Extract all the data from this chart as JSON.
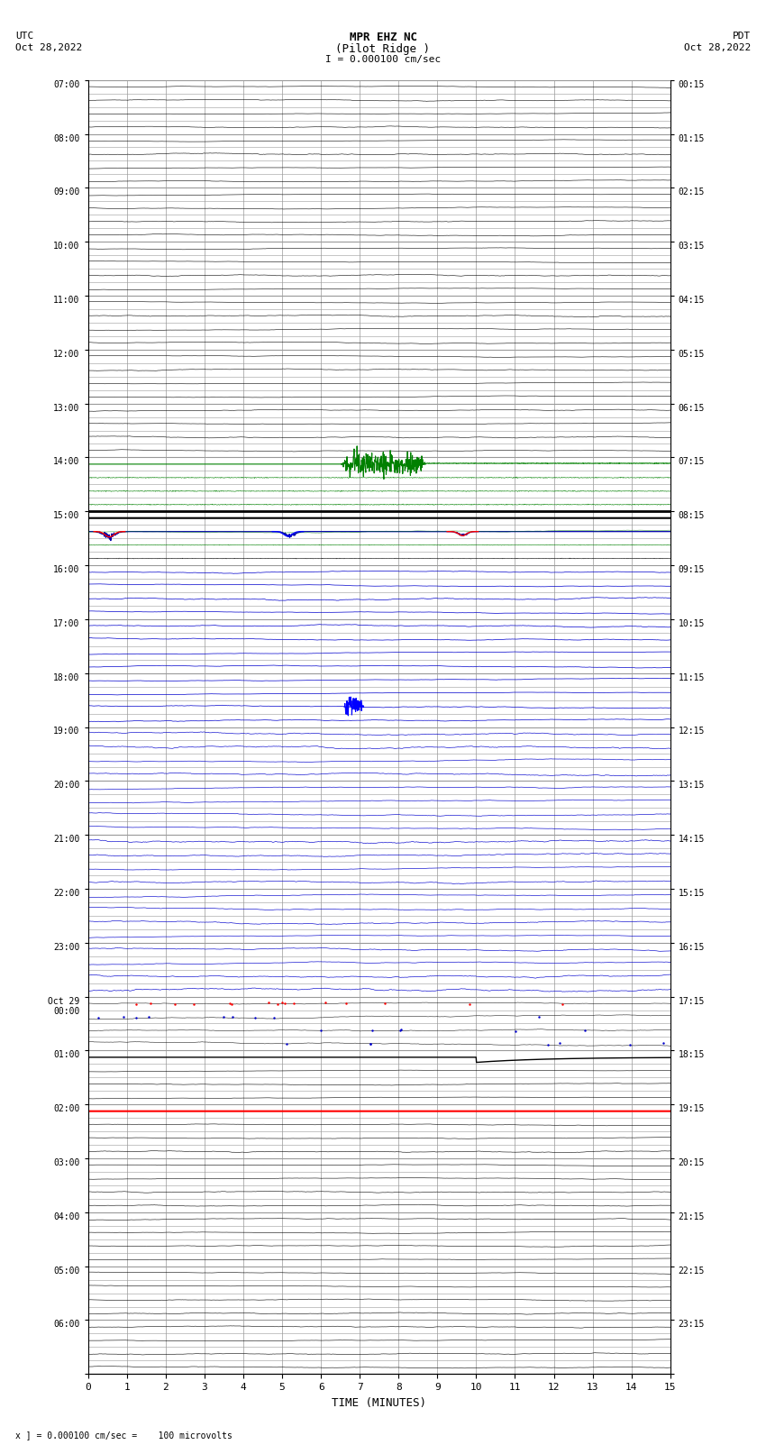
{
  "title_center_line1": "MPR EHZ NC",
  "title_center_line2": "(Pilot Ridge )",
  "title_left_line1": "UTC",
  "title_left_line2": "Oct 28,2022",
  "title_right_line1": "PDT",
  "title_right_line2": "Oct 28,2022",
  "scale_label": "I = 0.000100 cm/sec",
  "xlabel": "TIME (MINUTES)",
  "bottom_label": "x ] = 0.000100 cm/sec =    100 microvolts",
  "xlim": [
    0,
    15
  ],
  "xticks": [
    0,
    1,
    2,
    3,
    4,
    5,
    6,
    7,
    8,
    9,
    10,
    11,
    12,
    13,
    14,
    15
  ],
  "bg_color": "#ffffff",
  "grid_color": "#999999",
  "num_rows": 24,
  "utc_hour_labels": [
    "07:00",
    "08:00",
    "09:00",
    "10:00",
    "11:00",
    "12:00",
    "13:00",
    "14:00",
    "15:00",
    "16:00",
    "17:00",
    "18:00",
    "19:00",
    "20:00",
    "21:00",
    "22:00",
    "23:00",
    "Oct 29\n00:00",
    "01:00",
    "02:00",
    "03:00",
    "04:00",
    "05:00",
    "06:00"
  ],
  "pdt_hour_labels": [
    "00:15",
    "01:15",
    "02:15",
    "03:15",
    "04:15",
    "05:15",
    "06:15",
    "07:15",
    "08:15",
    "09:15",
    "10:15",
    "11:15",
    "12:15",
    "13:15",
    "14:15",
    "15:15",
    "16:15",
    "17:15",
    "18:15",
    "19:15",
    "20:15",
    "21:15",
    "22:15",
    "23:15"
  ],
  "lines_per_row": 4,
  "fig_width": 8.5,
  "fig_height": 16.13
}
